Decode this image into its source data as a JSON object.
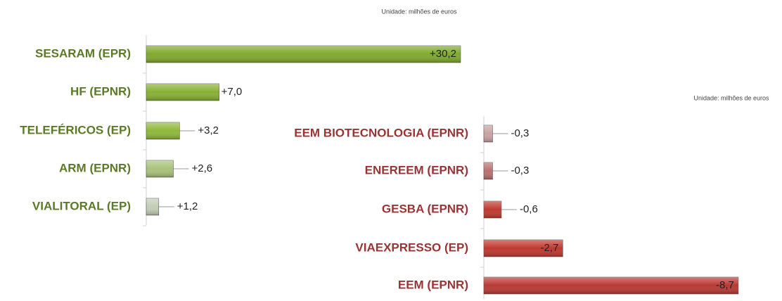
{
  "chart_data": [
    {
      "type": "bar",
      "orientation": "horizontal",
      "subtitle": "Unidade: milhões de euros",
      "categories": [
        "SESARAM (EPR)",
        "HF (EPNR)",
        "TELEFÉRICOS (EP)",
        "ARM (EPNR)",
        "VIALITORAL (EP)"
      ],
      "values": [
        30.2,
        7.0,
        3.2,
        2.6,
        1.2
      ],
      "value_labels": [
        "+30,2",
        "+7,0",
        "+3,2",
        "+2,6",
        "+1,2"
      ],
      "colors": [
        "#7faa2f",
        "#88b034",
        "#8fb83a",
        "#a9c27a",
        "#c3cdb5"
      ],
      "label_color": "#5b7a26",
      "xlim": [
        0,
        35
      ]
    },
    {
      "type": "bar",
      "orientation": "horizontal",
      "subtitle": "Unidade: milhões de euros",
      "categories": [
        "EEM BIOTECNOLOGIA (EPNR)",
        "ENEREEM (EPNR)",
        "GESBA (EPNR)",
        "VIAEXPRESSO (EP)",
        "EEM (EPNR)"
      ],
      "values": [
        -0.3,
        -0.3,
        -0.6,
        -2.7,
        -8.7
      ],
      "value_labels": [
        "-0,3",
        "-0,3",
        "-0,6",
        "-2,7",
        "-8,7"
      ],
      "colors": [
        "#c9a3a3",
        "#b97070",
        "#c0392f",
        "#c0392f",
        "#b83a34"
      ],
      "label_color": "#9a3434",
      "xlim": [
        0,
        -10
      ]
    }
  ]
}
